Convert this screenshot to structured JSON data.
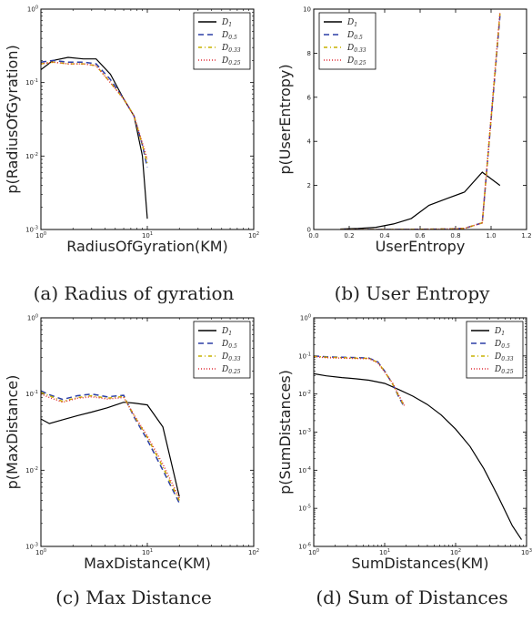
{
  "chart_data": [
    {
      "type": "line",
      "caption": "(a) Radius of gyration",
      "xlabel": "RadiusOfGyration(KM)",
      "ylabel": "p(RadiusOfGyration)",
      "xscale": "log",
      "yscale": "log",
      "xlim": [
        1,
        100
      ],
      "ylim": [
        0.001,
        1
      ],
      "xticks": [
        {
          "v": 1,
          "label": "10^0"
        },
        {
          "v": 10,
          "label": "10^1"
        },
        {
          "v": 100,
          "label": "10^2"
        }
      ],
      "yticks": [
        {
          "v": 0.001,
          "label": "10^-3"
        },
        {
          "v": 0.01,
          "label": "10^-2"
        },
        {
          "v": 0.1,
          "label": "10^-1"
        },
        {
          "v": 1,
          "label": "10^0"
        }
      ],
      "legend_position": "top-right",
      "series": [
        {
          "name": "D1",
          "label_base": "D",
          "label_sub": "1",
          "color": "#000000",
          "dash": "",
          "x": [
            1,
            1.3,
            1.8,
            2.5,
            3.3,
            4.5,
            6,
            7.5,
            9,
            10
          ],
          "y": [
            0.15,
            0.2,
            0.22,
            0.21,
            0.21,
            0.13,
            0.06,
            0.035,
            0.01,
            0.0014
          ]
        },
        {
          "name": "D0.5",
          "label_base": "D",
          "label_sub": "0.5",
          "color": "#2b3fa6",
          "dash": "6,4",
          "x": [
            1,
            1.3,
            1.8,
            2.5,
            3.3,
            4.5,
            6,
            7.5,
            9,
            10
          ],
          "y": [
            0.19,
            0.2,
            0.19,
            0.19,
            0.18,
            0.11,
            0.06,
            0.035,
            0.014,
            0.007
          ]
        },
        {
          "name": "D0.33",
          "label_base": "D",
          "label_sub": "0.33",
          "color": "#c7b200",
          "dash": "4,3,1,3",
          "x": [
            1,
            1.3,
            1.8,
            2.5,
            3.3,
            4.5,
            6,
            7.5,
            9,
            10
          ],
          "y": [
            0.18,
            0.19,
            0.18,
            0.18,
            0.17,
            0.1,
            0.06,
            0.035,
            0.014,
            0.008
          ]
        },
        {
          "name": "D0.25",
          "label_base": "D",
          "label_sub": "0.25",
          "color": "#e0303a",
          "dash": "1,2",
          "x": [
            1,
            1.3,
            1.8,
            2.5,
            3.3,
            4.5,
            6,
            7.5,
            9,
            10
          ],
          "y": [
            0.18,
            0.19,
            0.18,
            0.18,
            0.17,
            0.1,
            0.06,
            0.035,
            0.015,
            0.009
          ]
        }
      ]
    },
    {
      "type": "line",
      "caption": "(b) User Entropy",
      "xlabel": "UserEntropy",
      "ylabel": "p(UserEntropy)",
      "xscale": "linear",
      "yscale": "linear",
      "xlim": [
        0,
        1.2
      ],
      "ylim": [
        0,
        10
      ],
      "xticks": [
        {
          "v": 0,
          "label": "0.0"
        },
        {
          "v": 0.2,
          "label": "0.2"
        },
        {
          "v": 0.4,
          "label": "0.4"
        },
        {
          "v": 0.6,
          "label": "0.6"
        },
        {
          "v": 0.8,
          "label": "0.8"
        },
        {
          "v": 1.0,
          "label": "1.0"
        },
        {
          "v": 1.2,
          "label": "1.2"
        }
      ],
      "yticks": [
        {
          "v": 0,
          "label": "0"
        },
        {
          "v": 2,
          "label": "2"
        },
        {
          "v": 4,
          "label": "4"
        },
        {
          "v": 6,
          "label": "6"
        },
        {
          "v": 8,
          "label": "8"
        },
        {
          "v": 10,
          "label": "10"
        }
      ],
      "legend_position": "top-left",
      "series": [
        {
          "name": "D1",
          "label_base": "D",
          "label_sub": "1",
          "color": "#000000",
          "dash": "",
          "x": [
            0.15,
            0.25,
            0.35,
            0.45,
            0.55,
            0.65,
            0.75,
            0.85,
            0.95,
            1.05
          ],
          "y": [
            0.02,
            0.05,
            0.1,
            0.25,
            0.5,
            1.1,
            1.4,
            1.7,
            2.6,
            2.0
          ]
        },
        {
          "name": "D0.5",
          "label_base": "D",
          "label_sub": "0.5",
          "color": "#2b3fa6",
          "dash": "6,4",
          "x": [
            0.15,
            0.45,
            0.75,
            0.85,
            0.95,
            1.05
          ],
          "y": [
            0,
            0,
            0.02,
            0.05,
            0.3,
            9.7
          ]
        },
        {
          "name": "D0.33",
          "label_base": "D",
          "label_sub": "0.33",
          "color": "#c7b200",
          "dash": "4,3,1,3",
          "x": [
            0.15,
            0.45,
            0.75,
            0.85,
            0.95,
            1.05
          ],
          "y": [
            0,
            0,
            0.02,
            0.05,
            0.3,
            9.8
          ]
        },
        {
          "name": "D0.25",
          "label_base": "D",
          "label_sub": "0.25",
          "color": "#e0303a",
          "dash": "1,2",
          "x": [
            0.15,
            0.45,
            0.75,
            0.85,
            0.95,
            1.05
          ],
          "y": [
            0,
            0,
            0.02,
            0.05,
            0.3,
            9.9
          ]
        }
      ]
    },
    {
      "type": "line",
      "caption": "(c) Max Distance",
      "xlabel": "MaxDistance(KM)",
      "ylabel": "p(MaxDistance)",
      "xscale": "log",
      "yscale": "log",
      "xlim": [
        1,
        100
      ],
      "ylim": [
        0.001,
        1
      ],
      "xticks": [
        {
          "v": 1,
          "label": "10^0"
        },
        {
          "v": 10,
          "label": "10^1"
        },
        {
          "v": 100,
          "label": "10^2"
        }
      ],
      "yticks": [
        {
          "v": 0.001,
          "label": "10^-3"
        },
        {
          "v": 0.01,
          "label": "10^-2"
        },
        {
          "v": 0.1,
          "label": "10^-1"
        },
        {
          "v": 1,
          "label": "10^0"
        }
      ],
      "legend_position": "top-right",
      "series": [
        {
          "name": "D1",
          "label_base": "D",
          "label_sub": "1",
          "color": "#000000",
          "dash": "",
          "x": [
            1,
            1.2,
            1.6,
            2.2,
            3,
            4.2,
            6,
            7.5,
            10,
            14,
            20
          ],
          "y": [
            0.047,
            0.041,
            0.046,
            0.052,
            0.058,
            0.066,
            0.078,
            0.076,
            0.072,
            0.037,
            0.0045
          ]
        },
        {
          "name": "D0.5",
          "label_base": "D",
          "label_sub": "0.5",
          "color": "#2b3fa6",
          "dash": "6,4",
          "x": [
            1,
            1.2,
            1.6,
            2.2,
            3,
            4.2,
            6,
            7.5,
            10,
            14,
            20
          ],
          "y": [
            0.11,
            0.098,
            0.085,
            0.095,
            0.1,
            0.092,
            0.096,
            0.05,
            0.025,
            0.01,
            0.0037
          ]
        },
        {
          "name": "D0.33",
          "label_base": "D",
          "label_sub": "0.33",
          "color": "#c7b200",
          "dash": "4,3,1,3",
          "x": [
            1,
            1.2,
            1.6,
            2.2,
            3,
            4.2,
            6,
            7.5,
            10,
            14,
            20
          ],
          "y": [
            0.105,
            0.095,
            0.08,
            0.09,
            0.095,
            0.088,
            0.093,
            0.052,
            0.027,
            0.011,
            0.004
          ]
        },
        {
          "name": "D0.25",
          "label_base": "D",
          "label_sub": "0.25",
          "color": "#e0303a",
          "dash": "1,2",
          "x": [
            1,
            1.2,
            1.6,
            2.2,
            3,
            4.2,
            6,
            7.5,
            10,
            14,
            20
          ],
          "y": [
            0.1,
            0.09,
            0.078,
            0.088,
            0.092,
            0.086,
            0.09,
            0.053,
            0.028,
            0.012,
            0.0043
          ]
        }
      ]
    },
    {
      "type": "line",
      "caption": "(d) Sum of Distances",
      "xlabel": "SumDistances(KM)",
      "ylabel": "p(SumDistances)",
      "xscale": "log",
      "yscale": "log",
      "xlim": [
        1,
        1000
      ],
      "ylim": [
        1e-06,
        1
      ],
      "xticks": [
        {
          "v": 1,
          "label": "10^0"
        },
        {
          "v": 10,
          "label": "10^1"
        },
        {
          "v": 100,
          "label": "10^2"
        },
        {
          "v": 1000,
          "label": "10^3"
        }
      ],
      "yticks": [
        {
          "v": 1e-06,
          "label": "10^-6"
        },
        {
          "v": 1e-05,
          "label": "10^-5"
        },
        {
          "v": 0.0001,
          "label": "10^-4"
        },
        {
          "v": 0.001,
          "label": "10^-3"
        },
        {
          "v": 0.01,
          "label": "10^-2"
        },
        {
          "v": 0.1,
          "label": "10^-1"
        },
        {
          "v": 1,
          "label": "10^0"
        }
      ],
      "legend_position": "top-right",
      "series": [
        {
          "name": "D1",
          "label_base": "D",
          "label_sub": "1",
          "color": "#000000",
          "dash": "",
          "x": [
            1,
            1.5,
            2.5,
            4,
            6,
            10,
            16,
            25,
            40,
            63,
            100,
            160,
            250,
            400,
            630,
            850
          ],
          "y": [
            0.034,
            0.03,
            0.027,
            0.025,
            0.023,
            0.019,
            0.013,
            0.0088,
            0.0053,
            0.0028,
            0.0012,
            0.00042,
            0.00011,
            2e-05,
            3.5e-06,
            1.5e-06
          ]
        },
        {
          "name": "D0.5",
          "label_base": "D",
          "label_sub": "0.5",
          "color": "#2b3fa6",
          "dash": "6,4",
          "x": [
            1,
            1.5,
            2.5,
            4,
            6,
            8,
            10,
            13,
            16,
            19
          ],
          "y": [
            0.1,
            0.095,
            0.092,
            0.09,
            0.088,
            0.07,
            0.04,
            0.018,
            0.008,
            0.0045
          ]
        },
        {
          "name": "D0.33",
          "label_base": "D",
          "label_sub": "0.33",
          "color": "#c7b200",
          "dash": "4,3,1,3",
          "x": [
            1,
            1.5,
            2.5,
            4,
            6,
            8,
            10,
            13,
            16,
            19
          ],
          "y": [
            0.098,
            0.093,
            0.09,
            0.088,
            0.086,
            0.068,
            0.039,
            0.018,
            0.0085,
            0.0048
          ]
        },
        {
          "name": "D0.25",
          "label_base": "D",
          "label_sub": "0.25",
          "color": "#e0303a",
          "dash": "1,2",
          "x": [
            1,
            1.5,
            2.5,
            4,
            6,
            8,
            10,
            13,
            16,
            19
          ],
          "y": [
            0.096,
            0.09,
            0.088,
            0.086,
            0.085,
            0.066,
            0.038,
            0.019,
            0.009,
            0.005
          ]
        }
      ]
    }
  ]
}
